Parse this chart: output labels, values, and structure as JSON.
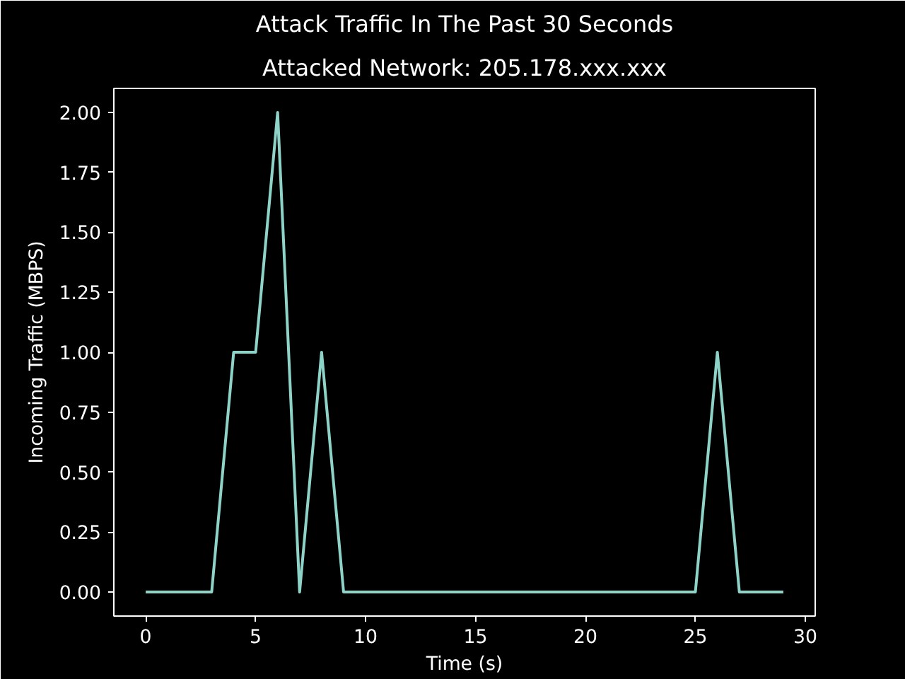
{
  "chart_data": {
    "type": "line",
    "title": "Attack Traffic In The Past 30 Seconds",
    "subtitle": "Attacked Network: 205.178.xxx.xxx",
    "xlabel": "Time (s)",
    "ylabel": "Incoming Traffic (MBPS)",
    "x": [
      0,
      1,
      2,
      3,
      4,
      5,
      6,
      7,
      8,
      9,
      10,
      11,
      12,
      13,
      14,
      15,
      16,
      17,
      18,
      19,
      20,
      21,
      22,
      23,
      24,
      25,
      26,
      27,
      28,
      29
    ],
    "series": [
      {
        "color": "#8dd3c7",
        "values": [
          0,
          0,
          0,
          0,
          1,
          1,
          2,
          0,
          1,
          0,
          0,
          0,
          0,
          0,
          0,
          0,
          0,
          0,
          0,
          0,
          0,
          0,
          0,
          0,
          0,
          0,
          1,
          0,
          0,
          0
        ]
      }
    ],
    "xlim": [
      -1.45,
      30.45
    ],
    "ylim": [
      -0.1,
      2.1
    ],
    "xticks": [
      0,
      5,
      10,
      15,
      20,
      25,
      30
    ],
    "yticks": [
      {
        "value": 0,
        "label": "0.00"
      },
      {
        "value": 0.25,
        "label": "0.25"
      },
      {
        "value": 0.5,
        "label": "0.50"
      },
      {
        "value": 0.75,
        "label": "0.75"
      },
      {
        "value": 1,
        "label": "1.00"
      },
      {
        "value": 1.25,
        "label": "1.25"
      },
      {
        "value": 1.5,
        "label": "1.50"
      },
      {
        "value": 1.75,
        "label": "1.75"
      },
      {
        "value": 2,
        "label": "2.00"
      }
    ],
    "grid": false,
    "line_style": "solid",
    "marker": "none"
  }
}
